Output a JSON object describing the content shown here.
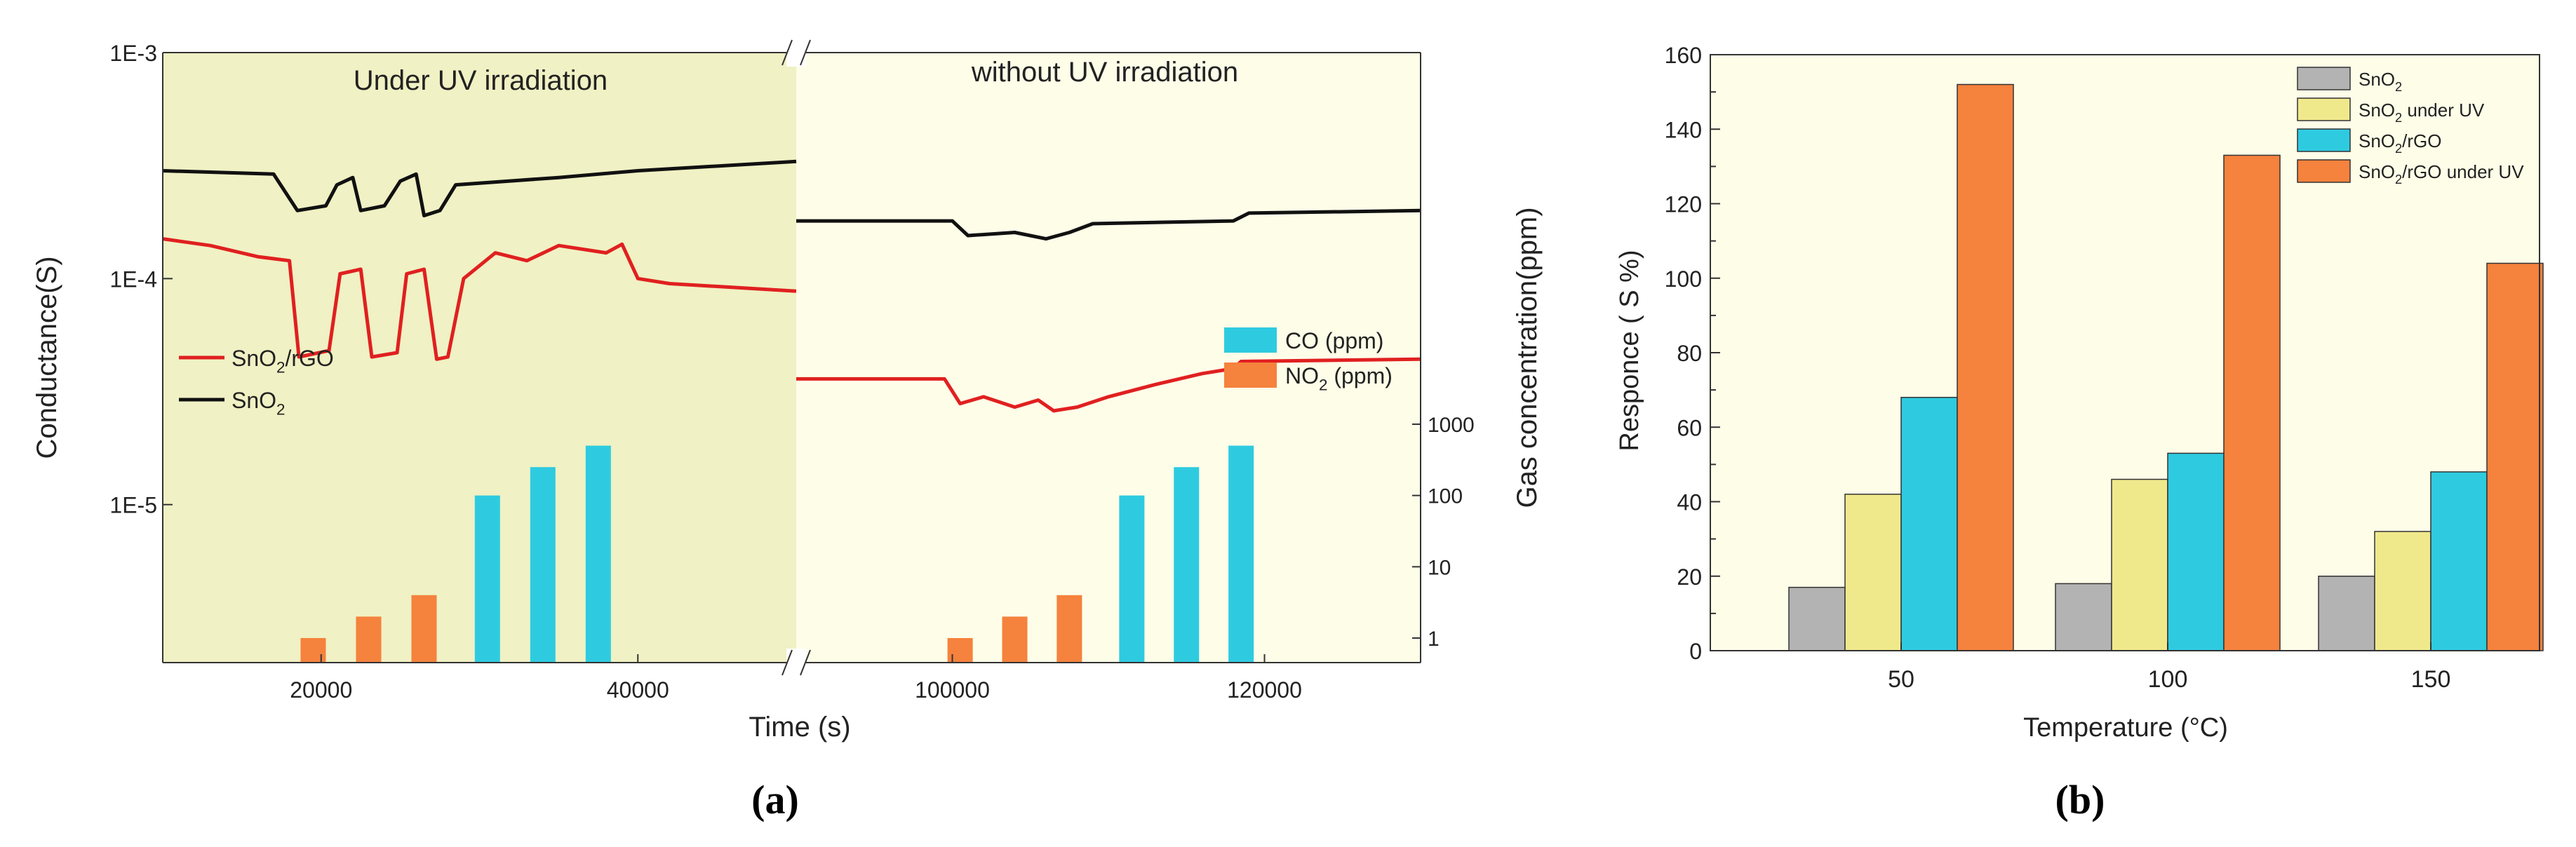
{
  "chart_data": [
    {
      "panel": "a",
      "caption": "(a)",
      "type": "line",
      "title": "",
      "regions": [
        "Under UV irradiation",
        "without UV irradiation"
      ],
      "xlabel": "Time (s)",
      "ylabel": "Conductance(S)",
      "ylabel_right": "Gas concentration(ppm)",
      "x_segments": [
        {
          "range": [
            10000,
            50000
          ],
          "ticks": [
            20000,
            40000
          ],
          "tick_labels": [
            "20000",
            "40000"
          ]
        },
        {
          "range": [
            90000,
            130000
          ],
          "ticks": [
            100000,
            120000
          ],
          "tick_labels": [
            "100000",
            "120000"
          ]
        }
      ],
      "y_scale": "log",
      "ylim": [
        2e-06,
        0.001
      ],
      "y_ticks": [
        0.001,
        0.0001,
        1e-05
      ],
      "y_tick_labels": [
        "1E-3",
        "1E-4",
        "1E-5"
      ],
      "y_right_ticks": [
        1,
        10,
        100,
        1000
      ],
      "y_right_tick_labels": [
        "1",
        "10",
        "100",
        "1000"
      ],
      "legend_lines": [
        {
          "sub": "SnO",
          "idx": "2",
          "rest": "/rGO",
          "color": "#e02020"
        },
        {
          "sub": "SnO",
          "idx": "2",
          "rest": "",
          "color": "#111111"
        }
      ],
      "legend_bars": [
        {
          "label": "CO (ppm)",
          "color": "#2ecbe0"
        },
        {
          "label": "NO",
          "idx": "2",
          "rest": " (ppm)",
          "color": "#f5823d"
        }
      ],
      "series": [
        {
          "name": "SnO2",
          "color": "#111111",
          "x": [
            10000,
            17000,
            18500,
            20300,
            21000,
            22000,
            22500,
            24000,
            25000,
            26000,
            26500,
            27500,
            28500,
            35000,
            40000,
            50000,
            90000,
            100000,
            101000,
            104000,
            106000,
            107500,
            109000,
            118000,
            119000,
            130000
          ],
          "values": [
            0.0003,
            0.00029,
            0.0002,
            0.00021,
            0.00026,
            0.00028,
            0.0002,
            0.00021,
            0.00027,
            0.00029,
            0.00019,
            0.0002,
            0.00026,
            0.00028,
            0.0003,
            0.00033,
            0.00018,
            0.00018,
            0.000155,
            0.00016,
            0.00015,
            0.00016,
            0.000175,
            0.00018,
            0.000195,
            0.0002
          ]
        },
        {
          "name": "SnO2/rGO",
          "color": "#e02020",
          "x": [
            10000,
            13000,
            16000,
            18000,
            18600,
            20500,
            21200,
            22500,
            23200,
            24800,
            25400,
            26500,
            27300,
            28000,
            29000,
            31000,
            33000,
            35000,
            38000,
            39000,
            40000,
            42000,
            50000,
            90000,
            99500,
            100500,
            102000,
            104000,
            105500,
            106500,
            108000,
            110000,
            113000,
            116000,
            118000,
            118500,
            130000
          ],
          "values": [
            0.00015,
            0.00014,
            0.000125,
            0.00012,
            4.5e-05,
            4.8e-05,
            0.000105,
            0.00011,
            4.5e-05,
            4.7e-05,
            0.000105,
            0.00011,
            4.4e-05,
            4.5e-05,
            0.0001,
            0.00013,
            0.00012,
            0.00014,
            0.00013,
            0.000142,
            0.0001,
            9.5e-05,
            8.8e-05,
            3.6e-05,
            3.6e-05,
            2.8e-05,
            3e-05,
            2.7e-05,
            2.9e-05,
            2.6e-05,
            2.7e-05,
            3e-05,
            3.4e-05,
            3.8e-05,
            4e-05,
            4.3e-05,
            4.4e-05
          ]
        },
        {
          "name": "NO2 (ppm)",
          "type": "bar",
          "color": "#f5823d",
          "x": [
            19500,
            23000,
            26500,
            100500,
            104000,
            107500
          ],
          "values": [
            1,
            2,
            4,
            1,
            2,
            4
          ]
        },
        {
          "name": "CO (ppm)",
          "type": "bar",
          "color": "#2ecbe0",
          "x": [
            30500,
            34000,
            37500,
            111500,
            115000,
            118500
          ],
          "values": [
            100,
            250,
            500,
            100,
            250,
            500
          ]
        }
      ]
    },
    {
      "panel": "b",
      "caption": "(b)",
      "type": "bar",
      "title": "",
      "xlabel": "Temperature (°C)",
      "ylabel": "Responce ( S %)",
      "ylim": [
        0,
        160
      ],
      "y_ticks": [
        0,
        20,
        40,
        60,
        80,
        100,
        120,
        140,
        160
      ],
      "categories": [
        "50",
        "100",
        "150"
      ],
      "legend_position": "top-right",
      "series": [
        {
          "name": "SnO2",
          "label": "SnO",
          "idx": "2",
          "rest": "",
          "color": "#b3b3b3",
          "values": [
            17,
            18,
            20
          ]
        },
        {
          "name": "SnO2 under UV",
          "label": "SnO",
          "idx": "2",
          "rest": " under UV",
          "color": "#f0e98c",
          "values": [
            42,
            46,
            32
          ]
        },
        {
          "name": "SnO2/rGO",
          "label": "SnO",
          "idx": "2",
          "rest": "/rGO",
          "color": "#2ecbe0",
          "values": [
            68,
            53,
            48
          ]
        },
        {
          "name": "SnO2/rGO under UV",
          "label": "SnO",
          "idx": "2",
          "rest": "/rGO under UV",
          "color": "#f5823d",
          "values": [
            152,
            133,
            104
          ]
        }
      ]
    }
  ]
}
